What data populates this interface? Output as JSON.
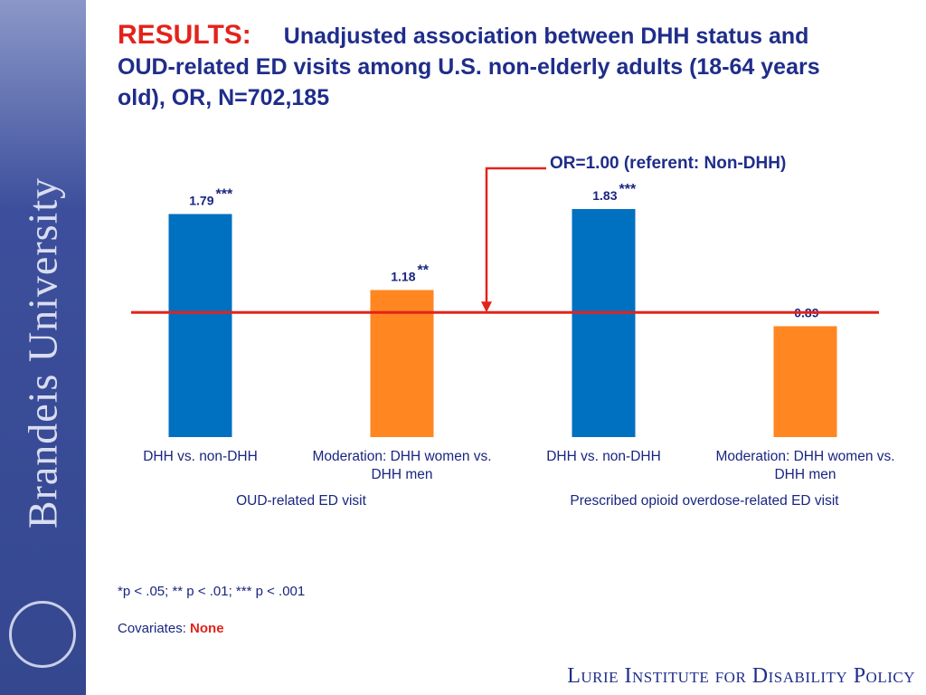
{
  "sidebar": {
    "text": "Brandeis University"
  },
  "header": {
    "label": "RESULTS:",
    "title": "Unadjusted association between DHH status and OUD-related ED visits among U.S. non-elderly adults (18-64 years old), OR, N=702,185"
  },
  "chart_data": {
    "type": "bar",
    "categories": [
      "DHH vs. non-DHH",
      "Moderation: DHH women vs. DHH men",
      "DHH vs. non-DHH",
      "Moderation: DHH women vs. DHH men"
    ],
    "groups": [
      "OUD-related ED visit",
      "Prescribed opioid overdose-related ED visit"
    ],
    "values": [
      1.79,
      1.18,
      1.83,
      0.89
    ],
    "colors": [
      "#0070c0",
      "#ff8621",
      "#0070c0",
      "#ff8621"
    ],
    "significance": [
      "***",
      "**",
      "***",
      null
    ],
    "reference_line": {
      "value": 1,
      "label": "OR=1.00 (referent: Non-DHH)",
      "color": "#e3231b"
    }
  },
  "footnote": "*p < .05; ** p < .01; *** p < .001",
  "covariates": {
    "label": "Covariates:",
    "value": "None"
  },
  "footer": "Lurie Institute for Disability Policy"
}
